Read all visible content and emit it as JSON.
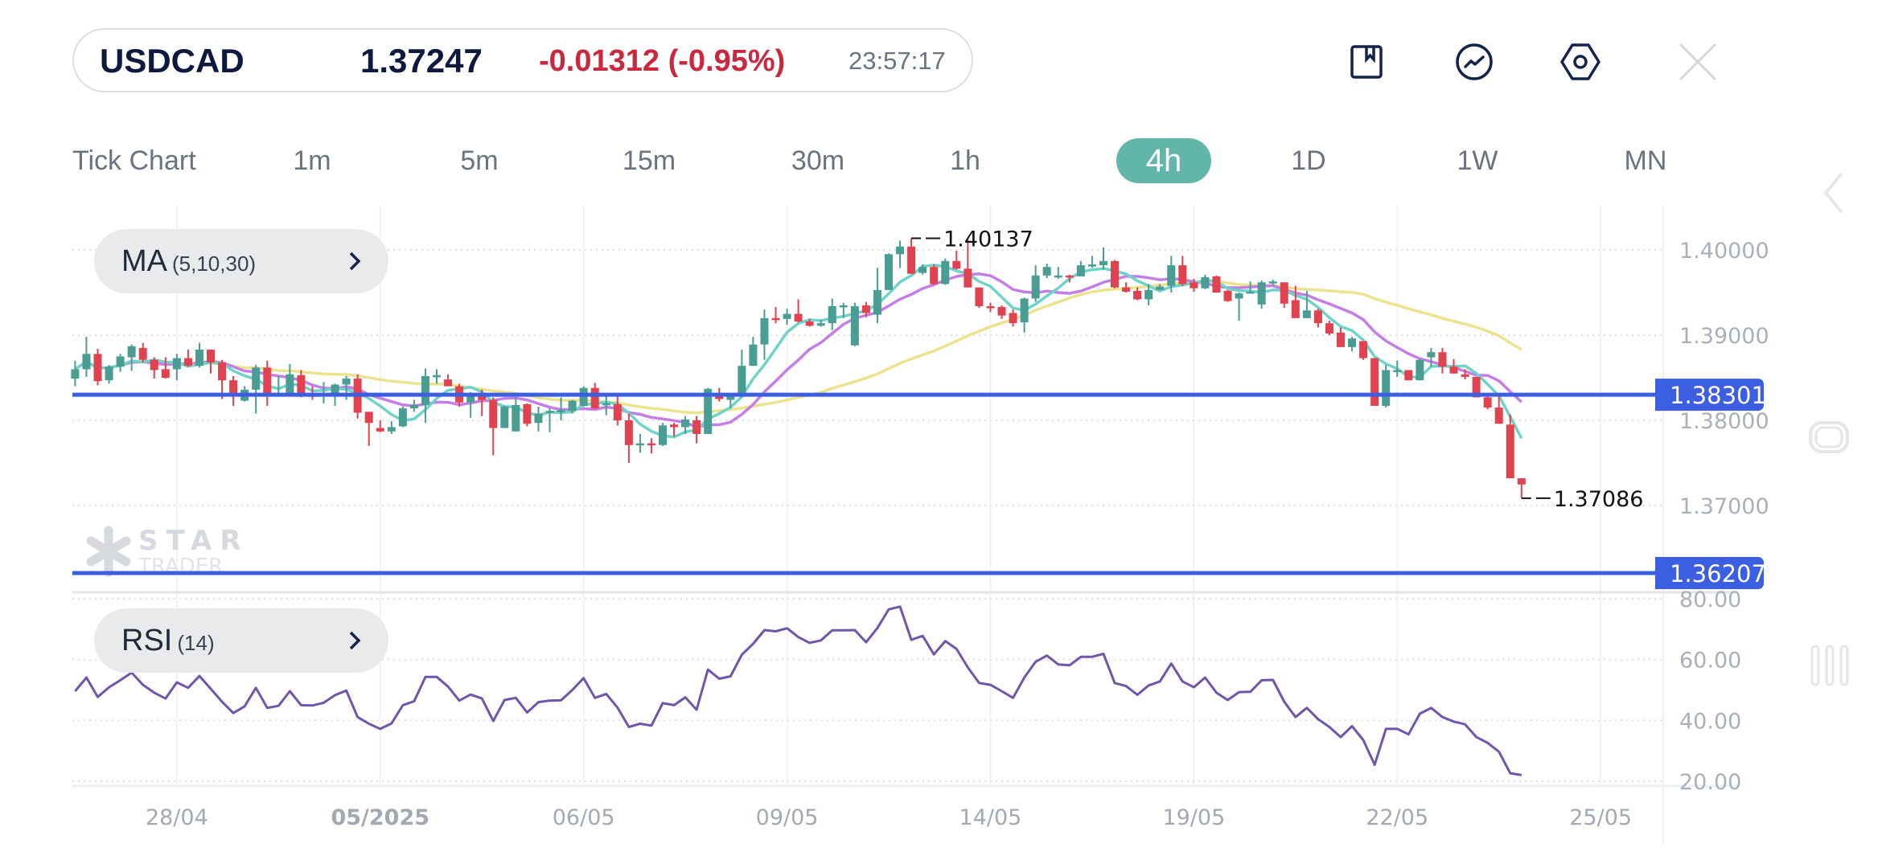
{
  "header": {
    "symbol": "USDCAD",
    "price": "1.37247",
    "change": "-0.01312 (-0.95%)",
    "time": "23:57:17",
    "icons": [
      "bookmark-icon",
      "trend-chart-icon",
      "settings-hex-icon",
      "close-icon"
    ]
  },
  "timeframes": [
    {
      "label": "Tick Chart"
    },
    {
      "label": "1m"
    },
    {
      "label": "5m"
    },
    {
      "label": "15m"
    },
    {
      "label": "30m"
    },
    {
      "label": "1h"
    },
    {
      "label": "4h",
      "active": true
    },
    {
      "label": "1D"
    },
    {
      "label": "1W"
    },
    {
      "label": "MN"
    }
  ],
  "indicators": {
    "ma": {
      "name": "MA",
      "params": "(5,10,30)"
    },
    "rsi": {
      "name": "RSI",
      "params": "(14)"
    }
  },
  "watermark": {
    "line1": "STAR",
    "line2": "TRADER"
  },
  "colors": {
    "up": "#4a9d93",
    "down": "#e0424f",
    "ma5": "#6fd3c9",
    "ma10": "#c47ee6",
    "ma30": "#ece38f",
    "level": "#3c5ee0",
    "rsi": "#6f56a8",
    "accent": "#62b5aa",
    "negative": "#c9283e"
  },
  "chart_data": {
    "type": "candlestick",
    "timeframe": "4h",
    "price_axis": {
      "ticks": [
        "1.40000",
        "1.39000",
        "1.38000",
        "1.37000"
      ],
      "range": [
        1.3595,
        1.4075
      ]
    },
    "x_ticks": [
      {
        "label": "28/04",
        "candle": 10
      },
      {
        "label": "05/2025",
        "candle": 28,
        "bold": true
      },
      {
        "label": "06/05",
        "candle": 46
      },
      {
        "label": "09/05",
        "candle": 64
      },
      {
        "label": "14/05",
        "candle": 82
      },
      {
        "label": "19/05",
        "candle": 100
      },
      {
        "label": "22/05",
        "candle": 118
      },
      {
        "label": "25/05",
        "candle": 136
      }
    ],
    "ohlc_fields": [
      "open",
      "high",
      "low",
      "close"
    ],
    "candles": [
      [
        1.3849,
        1.387,
        1.384,
        1.386
      ],
      [
        1.386,
        1.3898,
        1.3851,
        1.3878
      ],
      [
        1.3878,
        1.3884,
        1.3841,
        1.3846
      ],
      [
        1.3847,
        1.3865,
        1.3843,
        1.3863
      ],
      [
        1.3863,
        1.3878,
        1.3857,
        1.3875
      ],
      [
        1.3874,
        1.3889,
        1.3858,
        1.3887
      ],
      [
        1.3885,
        1.3891,
        1.3868,
        1.3871
      ],
      [
        1.3871,
        1.3874,
        1.3849,
        1.3859
      ],
      [
        1.386,
        1.3874,
        1.3849,
        1.385
      ],
      [
        1.386,
        1.3878,
        1.3847,
        1.3873
      ],
      [
        1.3873,
        1.3883,
        1.3863,
        1.3864
      ],
      [
        1.3864,
        1.3891,
        1.3862,
        1.3883
      ],
      [
        1.3883,
        1.3883,
        1.3855,
        1.3868
      ],
      [
        1.3868,
        1.3871,
        1.3825,
        1.3847
      ],
      [
        1.3847,
        1.3852,
        1.3817,
        1.3828
      ],
      [
        1.3823,
        1.384,
        1.3822,
        1.3836
      ],
      [
        1.3836,
        1.3865,
        1.3808,
        1.3862
      ],
      [
        1.3862,
        1.387,
        1.3817,
        1.3829
      ],
      [
        1.383,
        1.3852,
        1.3829,
        1.3831
      ],
      [
        1.383,
        1.3866,
        1.3829,
        1.3854
      ],
      [
        1.3853,
        1.3859,
        1.3827,
        1.383
      ],
      [
        1.383,
        1.384,
        1.3824,
        1.3829
      ],
      [
        1.383,
        1.3845,
        1.382,
        1.3832
      ],
      [
        1.3831,
        1.3843,
        1.3817,
        1.3842
      ],
      [
        1.3842,
        1.3852,
        1.3824,
        1.3849
      ],
      [
        1.3849,
        1.3854,
        1.3802,
        1.3809
      ],
      [
        1.381,
        1.381,
        1.377,
        1.3797
      ],
      [
        1.3791,
        1.38,
        1.3786,
        1.3787
      ],
      [
        1.3787,
        1.3799,
        1.3784,
        1.3792
      ],
      [
        1.3793,
        1.3816,
        1.3792,
        1.3814
      ],
      [
        1.3814,
        1.3824,
        1.381,
        1.3818
      ],
      [
        1.3818,
        1.3861,
        1.3797,
        1.3852
      ],
      [
        1.3852,
        1.386,
        1.3843,
        1.3853
      ],
      [
        1.3848,
        1.3854,
        1.384,
        1.384
      ],
      [
        1.384,
        1.3843,
        1.3816,
        1.3821
      ],
      [
        1.3821,
        1.3833,
        1.3803,
        1.3829
      ],
      [
        1.3829,
        1.3836,
        1.3805,
        1.3824
      ],
      [
        1.3824,
        1.3827,
        1.3759,
        1.3791
      ],
      [
        1.3791,
        1.3817,
        1.3791,
        1.3816
      ],
      [
        1.3787,
        1.3827,
        1.3787,
        1.3818
      ],
      [
        1.3819,
        1.382,
        1.3793,
        1.3796
      ],
      [
        1.3797,
        1.3816,
        1.3787,
        1.3808
      ],
      [
        1.381,
        1.3814,
        1.3786,
        1.3811
      ],
      [
        1.381,
        1.3827,
        1.38,
        1.3812
      ],
      [
        1.3811,
        1.3824,
        1.3808,
        1.3823
      ],
      [
        1.3817,
        1.384,
        1.3816,
        1.3838
      ],
      [
        1.3838,
        1.3844,
        1.3813,
        1.3814
      ],
      [
        1.3819,
        1.3831,
        1.3806,
        1.382
      ],
      [
        1.3819,
        1.383,
        1.3794,
        1.38
      ],
      [
        1.38,
        1.3808,
        1.375,
        1.3771
      ],
      [
        1.3771,
        1.3784,
        1.3762,
        1.3773
      ],
      [
        1.3773,
        1.3779,
        1.3761,
        1.3772
      ],
      [
        1.3771,
        1.3797,
        1.377,
        1.3794
      ],
      [
        1.3795,
        1.3797,
        1.3781,
        1.3792
      ],
      [
        1.3792,
        1.3805,
        1.3784,
        1.3801
      ],
      [
        1.38,
        1.3805,
        1.3773,
        1.3784
      ],
      [
        1.3784,
        1.3838,
        1.3784,
        1.3837
      ],
      [
        1.383,
        1.3838,
        1.3822,
        1.3825
      ],
      [
        1.3824,
        1.383,
        1.3814,
        1.3829
      ],
      [
        1.3829,
        1.3883,
        1.3827,
        1.3864
      ],
      [
        1.3864,
        1.3898,
        1.3864,
        1.3889
      ],
      [
        1.3889,
        1.393,
        1.3871,
        1.392
      ],
      [
        1.392,
        1.3933,
        1.3914,
        1.3919
      ],
      [
        1.3919,
        1.3931,
        1.3912,
        1.3925
      ],
      [
        1.3925,
        1.3942,
        1.3915,
        1.3916
      ],
      [
        1.3916,
        1.3919,
        1.391,
        1.3911
      ],
      [
        1.3911,
        1.3918,
        1.391,
        1.3914
      ],
      [
        1.3914,
        1.3943,
        1.3906,
        1.3934
      ],
      [
        1.3934,
        1.3938,
        1.392,
        1.3935
      ],
      [
        1.3888,
        1.3938,
        1.3887,
        1.3934
      ],
      [
        1.3935,
        1.3939,
        1.3921,
        1.3926
      ],
      [
        1.3924,
        1.3979,
        1.3914,
        1.3953
      ],
      [
        1.3953,
        1.3996,
        1.3953,
        1.3995
      ],
      [
        1.3995,
        1.4011,
        1.3979,
        1.4004
      ],
      [
        1.4004,
        1.40137,
        1.3972,
        1.3972
      ],
      [
        1.3973,
        1.3983,
        1.3971,
        1.398
      ],
      [
        1.398,
        1.3983,
        1.3959,
        1.396
      ],
      [
        1.396,
        1.399,
        1.3959,
        1.3987
      ],
      [
        1.3987,
        1.3999,
        1.3977,
        1.3978
      ],
      [
        1.3978,
        1.4013,
        1.3956,
        1.3956
      ],
      [
        1.3956,
        1.3956,
        1.3932,
        1.3934
      ],
      [
        1.3934,
        1.3938,
        1.3927,
        1.3932
      ],
      [
        1.3933,
        1.3935,
        1.3919,
        1.3923
      ],
      [
        1.3926,
        1.393,
        1.391,
        1.3914
      ],
      [
        1.3915,
        1.3944,
        1.3903,
        1.3943
      ],
      [
        1.3943,
        1.3982,
        1.3939,
        1.397
      ],
      [
        1.397,
        1.3984,
        1.3967,
        1.398
      ],
      [
        1.3969,
        1.398,
        1.3966,
        1.397
      ],
      [
        1.397,
        1.3971,
        1.3962,
        1.3969
      ],
      [
        1.3969,
        1.3987,
        1.3969,
        1.3982
      ],
      [
        1.3982,
        1.3993,
        1.3979,
        1.3983
      ],
      [
        1.3982,
        1.4003,
        1.3977,
        1.3987
      ],
      [
        1.3987,
        1.3988,
        1.3955,
        1.3956
      ],
      [
        1.3956,
        1.3962,
        1.395,
        1.3951
      ],
      [
        1.3952,
        1.3956,
        1.3941,
        1.3942
      ],
      [
        1.3942,
        1.396,
        1.3935,
        1.3953
      ],
      [
        1.3953,
        1.396,
        1.3953,
        1.3957
      ],
      [
        1.3958,
        1.3993,
        1.395,
        1.3982
      ],
      [
        1.3982,
        1.3993,
        1.3958,
        1.396
      ],
      [
        1.3962,
        1.3966,
        1.3951,
        1.3955
      ],
      [
        1.3955,
        1.3971,
        1.3954,
        1.3968
      ],
      [
        1.3969,
        1.397,
        1.395,
        1.395
      ],
      [
        1.3952,
        1.3953,
        1.3939,
        1.394
      ],
      [
        1.3943,
        1.395,
        1.3917,
        1.3949
      ],
      [
        1.395,
        1.3963,
        1.3949,
        1.3951
      ],
      [
        1.3936,
        1.3964,
        1.3931,
        1.3962
      ],
      [
        1.3962,
        1.3965,
        1.3959,
        1.3963
      ],
      [
        1.3962,
        1.3962,
        1.3932,
        1.3937
      ],
      [
        1.3941,
        1.3958,
        1.392,
        1.392
      ],
      [
        1.392,
        1.3952,
        1.392,
        1.3929
      ],
      [
        1.3929,
        1.3931,
        1.3909,
        1.3914
      ],
      [
        1.3914,
        1.3917,
        1.39,
        1.3902
      ],
      [
        1.3903,
        1.3909,
        1.3886,
        1.3886
      ],
      [
        1.3886,
        1.3898,
        1.3881,
        1.3896
      ],
      [
        1.3893,
        1.3893,
        1.3871,
        1.3873
      ],
      [
        1.3873,
        1.3873,
        1.3817,
        1.3817
      ],
      [
        1.3817,
        1.3865,
        1.3815,
        1.3859
      ],
      [
        1.3858,
        1.387,
        1.3851,
        1.3859
      ],
      [
        1.3859,
        1.3859,
        1.3847,
        1.3847
      ],
      [
        1.3847,
        1.3872,
        1.3847,
        1.3871
      ],
      [
        1.3874,
        1.3885,
        1.3863,
        1.388
      ],
      [
        1.388,
        1.3885,
        1.3855,
        1.3863
      ],
      [
        1.3863,
        1.3872,
        1.3855,
        1.3855
      ],
      [
        1.3854,
        1.386,
        1.3848,
        1.3851
      ],
      [
        1.3851,
        1.3851,
        1.3827,
        1.3827
      ],
      [
        1.3827,
        1.383,
        1.3813,
        1.3815
      ],
      [
        1.3815,
        1.3829,
        1.3796,
        1.3796
      ],
      [
        1.3795,
        1.3807,
        1.3732,
        1.3732
      ],
      [
        1.3732,
        1.3732,
        1.37086,
        1.37247
      ]
    ],
    "moving_averages": [
      5,
      10,
      30
    ],
    "levels": [
      {
        "value": "1.38301"
      },
      {
        "value": "1.36207"
      }
    ],
    "annotations": [
      {
        "label": "1.40137",
        "candle": 75,
        "kind": "high"
      },
      {
        "label": "1.37086",
        "candle": 129,
        "kind": "low"
      }
    ],
    "rsi": {
      "period": 14,
      "ticks": [
        "80.00",
        "60.00",
        "40.00",
        "20.00"
      ],
      "range": [
        18,
        82
      ],
      "values": [
        49.6,
        54.1,
        47.7,
        50.9,
        53.2,
        55.7,
        51.7,
        49.1,
        47.2,
        52.5,
        50.7,
        54.6,
        50.4,
        46.1,
        42.4,
        44.6,
        50.7,
        44.1,
        44.8,
        49.6,
        45.0,
        44.9,
        45.8,
        48.3,
        49.8,
        41.1,
        38.9,
        37.2,
        39.0,
        45.0,
        46.3,
        54.3,
        54.3,
        51.1,
        46.5,
        48.5,
        47.2,
        39.8,
        46.7,
        47.4,
        42.6,
        46.0,
        46.5,
        46.6,
        50.0,
        53.9,
        47.4,
        48.7,
        44.2,
        37.8,
        38.9,
        38.3,
        45.7,
        45.0,
        47.6,
        43.5,
        56.7,
        53.7,
        54.5,
        61.6,
        65.2,
        69.7,
        69.3,
        70.3,
        67.4,
        65.5,
        66.3,
        69.6,
        69.6,
        69.7,
        65.7,
        70.4,
        76.5,
        77.4,
        66.5,
        67.8,
        61.7,
        66.1,
        63.5,
        57.4,
        52.3,
        51.7,
        49.6,
        47.4,
        54.1,
        59.3,
        61.3,
        58.4,
        58.1,
        60.9,
        60.9,
        61.9,
        52.3,
        51.3,
        48.4,
        51.5,
        52.8,
        58.7,
        52.8,
        50.9,
        54.1,
        49.1,
        46.7,
        49.3,
        49.4,
        53.2,
        53.3,
        46.1,
        41.1,
        44.1,
        40.4,
        37.8,
        34.5,
        38.1,
        33.5,
        25.4,
        37.2,
        37.2,
        35.4,
        42.2,
        44.1,
        41.1,
        39.6,
        38.7,
        34.5,
        32.6,
        29.7,
        22.6,
        22.0
      ]
    }
  }
}
